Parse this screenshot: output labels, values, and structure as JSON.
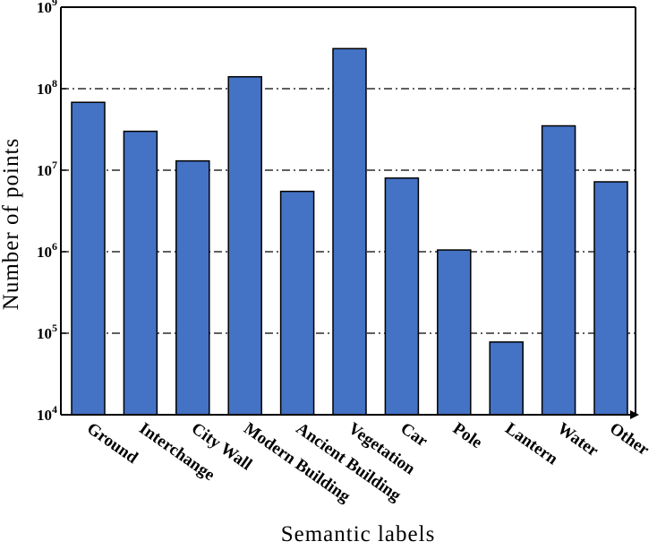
{
  "chart_data": {
    "type": "bar",
    "xlabel": "Semantic labels",
    "ylabel": "Number of points",
    "yscale": "log",
    "ylim": [
      10000,
      1000000000
    ],
    "grid": "horizontal dash-dot at major decades",
    "categories": [
      "Ground",
      "Interchange",
      "City Wall",
      "Modern Building",
      "Ancient Building",
      "Vegetation",
      "Car",
      "Pole",
      "Lantern",
      "Water",
      "Other"
    ],
    "values": [
      68000000,
      30000000,
      13000000,
      140000000,
      5500000,
      310000000,
      8000000,
      1050000,
      78000,
      35000000,
      7200000
    ],
    "yticks": [
      {
        "base": "10",
        "exp": "4"
      },
      {
        "base": "10",
        "exp": "5"
      },
      {
        "base": "10",
        "exp": "6"
      },
      {
        "base": "10",
        "exp": "7"
      },
      {
        "base": "10",
        "exp": "8"
      },
      {
        "base": "10",
        "exp": "9"
      }
    ],
    "bar_color": "#4472c4"
  }
}
